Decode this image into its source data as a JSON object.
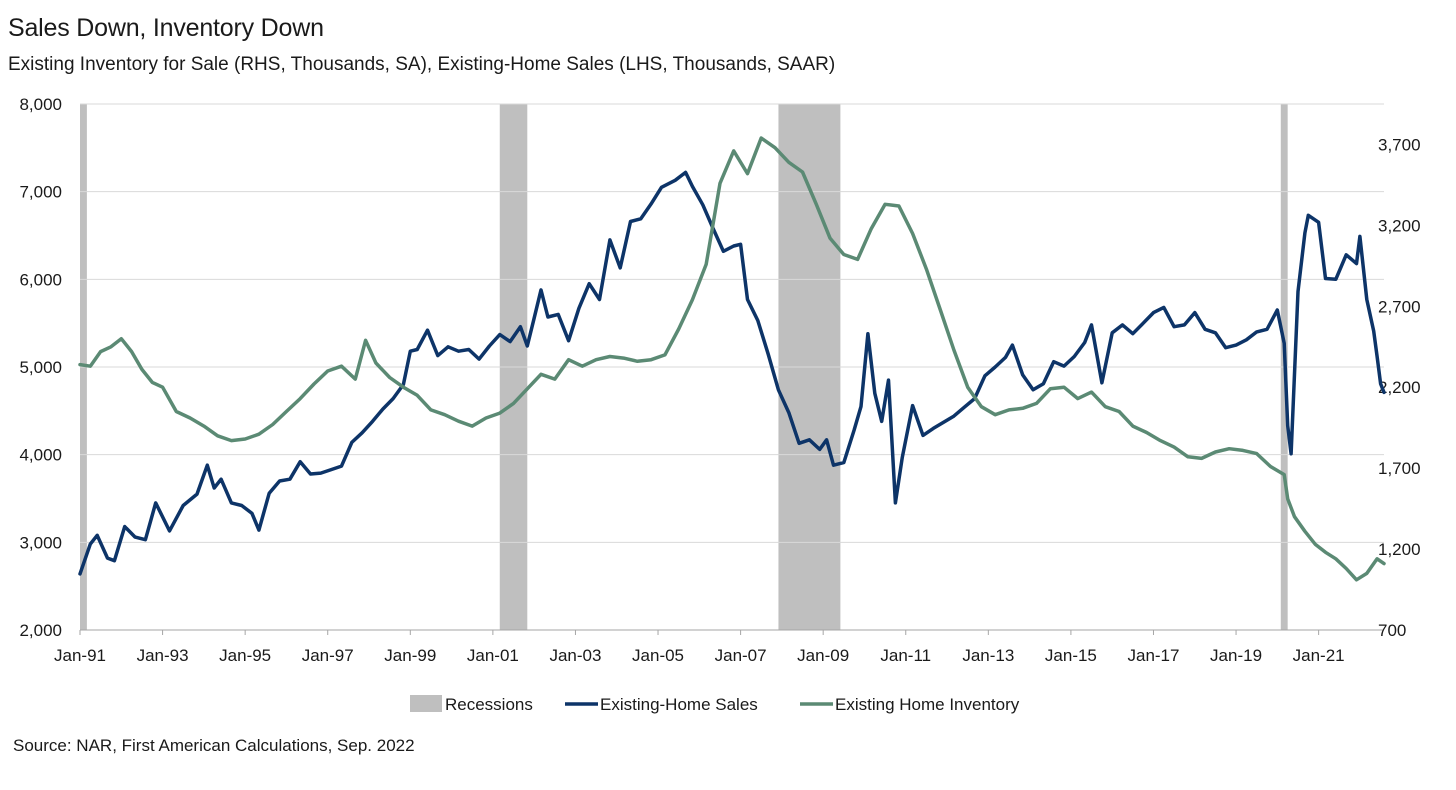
{
  "title": "Sales Down, Inventory Down",
  "subtitle": "Existing  Inventory for Sale (RHS, Thousands, SA), Existing-Home  Sales (LHS, Thousands, SAAR)",
  "source": "Source: NAR, First American Calculations, Sep.  2022",
  "colors": {
    "sales": "#0d3468",
    "inventory": "#5b8a74",
    "recession": "#bfbfbf",
    "grid": "#d9d9d9"
  },
  "chart_data": {
    "type": "line",
    "x_start": "1991-01",
    "x_end": "2022-08",
    "x_ticks": [
      "Jan-91",
      "Jan-93",
      "Jan-95",
      "Jan-97",
      "Jan-99",
      "Jan-01",
      "Jan-03",
      "Jan-05",
      "Jan-07",
      "Jan-09",
      "Jan-11",
      "Jan-13",
      "Jan-15",
      "Jan-17",
      "Jan-19",
      "Jan-21"
    ],
    "y_left": {
      "min": 2000,
      "max": 8000,
      "ticks": [
        "2,000",
        "3,000",
        "4,000",
        "5,000",
        "6,000",
        "7,000",
        "8,000"
      ],
      "tick_values": [
        2000,
        3000,
        4000,
        5000,
        6000,
        7000,
        8000
      ]
    },
    "y_right": {
      "min": 700,
      "max": 3950,
      "ticks": [
        "700",
        "1,200",
        "1,700",
        "2,200",
        "2,700",
        "3,200",
        "3,700"
      ],
      "tick_values": [
        700,
        1200,
        1700,
        2200,
        2700,
        3200,
        3700
      ]
    },
    "grid": true,
    "legend_position": "bottom",
    "legend": [
      "Recessions",
      "Existing-Home Sales",
      "Existing Home Inventory"
    ],
    "recessions": [
      [
        "1991-01",
        "1991-03"
      ],
      [
        "2001-03",
        "2001-11"
      ],
      [
        "2007-12",
        "2009-06"
      ],
      [
        "2020-02",
        "2020-04"
      ]
    ],
    "series": [
      {
        "name": "Existing-Home Sales",
        "axis": "left",
        "points": [
          [
            "1991-01",
            2640
          ],
          [
            "1991-04",
            2980
          ],
          [
            "1991-06",
            3080
          ],
          [
            "1991-09",
            2820
          ],
          [
            "1991-11",
            2790
          ],
          [
            "1992-02",
            3180
          ],
          [
            "1992-05",
            3060
          ],
          [
            "1992-08",
            3030
          ],
          [
            "1992-11",
            3450
          ],
          [
            "1993-03",
            3130
          ],
          [
            "1993-07",
            3420
          ],
          [
            "1993-11",
            3550
          ],
          [
            "1994-02",
            3880
          ],
          [
            "1994-04",
            3620
          ],
          [
            "1994-06",
            3720
          ],
          [
            "1994-09",
            3450
          ],
          [
            "1994-12",
            3420
          ],
          [
            "1995-03",
            3330
          ],
          [
            "1995-05",
            3140
          ],
          [
            "1995-08",
            3560
          ],
          [
            "1995-11",
            3700
          ],
          [
            "1996-02",
            3720
          ],
          [
            "1996-05",
            3920
          ],
          [
            "1996-08",
            3780
          ],
          [
            "1996-11",
            3790
          ],
          [
            "1997-02",
            3830
          ],
          [
            "1997-05",
            3870
          ],
          [
            "1997-08",
            4140
          ],
          [
            "1997-11",
            4250
          ],
          [
            "1998-02",
            4380
          ],
          [
            "1998-05",
            4520
          ],
          [
            "1998-08",
            4640
          ],
          [
            "1998-11",
            4800
          ],
          [
            "1999-01",
            5180
          ],
          [
            "1999-03",
            5200
          ],
          [
            "1999-06",
            5420
          ],
          [
            "1999-09",
            5130
          ],
          [
            "1999-12",
            5230
          ],
          [
            "2000-03",
            5180
          ],
          [
            "2000-06",
            5200
          ],
          [
            "2000-09",
            5090
          ],
          [
            "2000-12",
            5240
          ],
          [
            "2001-03",
            5370
          ],
          [
            "2001-06",
            5290
          ],
          [
            "2001-09",
            5460
          ],
          [
            "2001-11",
            5240
          ],
          [
            "2002-01",
            5560
          ],
          [
            "2002-03",
            5880
          ],
          [
            "2002-05",
            5570
          ],
          [
            "2002-08",
            5600
          ],
          [
            "2002-11",
            5300
          ],
          [
            "2003-02",
            5670
          ],
          [
            "2003-05",
            5950
          ],
          [
            "2003-08",
            5770
          ],
          [
            "2003-11",
            6450
          ],
          [
            "2004-02",
            6130
          ],
          [
            "2004-05",
            6660
          ],
          [
            "2004-08",
            6690
          ],
          [
            "2004-11",
            6860
          ],
          [
            "2005-02",
            7050
          ],
          [
            "2005-06",
            7130
          ],
          [
            "2005-09",
            7220
          ],
          [
            "2005-11",
            7060
          ],
          [
            "2006-02",
            6850
          ],
          [
            "2006-05",
            6580
          ],
          [
            "2006-08",
            6320
          ],
          [
            "2006-11",
            6380
          ],
          [
            "2007-01",
            6400
          ],
          [
            "2007-03",
            5770
          ],
          [
            "2007-06",
            5530
          ],
          [
            "2007-09",
            5150
          ],
          [
            "2007-12",
            4740
          ],
          [
            "2008-03",
            4480
          ],
          [
            "2008-06",
            4130
          ],
          [
            "2008-09",
            4170
          ],
          [
            "2008-12",
            4060
          ],
          [
            "2009-02",
            4170
          ],
          [
            "2009-04",
            3880
          ],
          [
            "2009-07",
            3910
          ],
          [
            "2009-10",
            4280
          ],
          [
            "2009-12",
            4550
          ],
          [
            "2010-02",
            5380
          ],
          [
            "2010-04",
            4700
          ],
          [
            "2010-06",
            4380
          ],
          [
            "2010-08",
            4850
          ],
          [
            "2010-10",
            3450
          ],
          [
            "2010-12",
            3970
          ],
          [
            "2011-03",
            4560
          ],
          [
            "2011-06",
            4220
          ],
          [
            "2011-09",
            4300
          ],
          [
            "2011-12",
            4370
          ],
          [
            "2012-03",
            4440
          ],
          [
            "2012-06",
            4540
          ],
          [
            "2012-09",
            4640
          ],
          [
            "2012-12",
            4900
          ],
          [
            "2013-03",
            5000
          ],
          [
            "2013-06",
            5110
          ],
          [
            "2013-08",
            5250
          ],
          [
            "2013-11",
            4910
          ],
          [
            "2014-02",
            4740
          ],
          [
            "2014-05",
            4810
          ],
          [
            "2014-08",
            5060
          ],
          [
            "2014-11",
            5010
          ],
          [
            "2015-02",
            5120
          ],
          [
            "2015-05",
            5280
          ],
          [
            "2015-07",
            5480
          ],
          [
            "2015-10",
            4820
          ],
          [
            "2016-01",
            5390
          ],
          [
            "2016-04",
            5480
          ],
          [
            "2016-07",
            5380
          ],
          [
            "2016-10",
            5500
          ],
          [
            "2017-01",
            5620
          ],
          [
            "2017-04",
            5680
          ],
          [
            "2017-07",
            5460
          ],
          [
            "2017-10",
            5480
          ],
          [
            "2018-01",
            5620
          ],
          [
            "2018-04",
            5430
          ],
          [
            "2018-07",
            5390
          ],
          [
            "2018-10",
            5220
          ],
          [
            "2019-01",
            5250
          ],
          [
            "2019-04",
            5310
          ],
          [
            "2019-07",
            5400
          ],
          [
            "2019-10",
            5430
          ],
          [
            "2020-01",
            5650
          ],
          [
            "2020-03",
            5270
          ],
          [
            "2020-04",
            4330
          ],
          [
            "2020-05",
            4010
          ],
          [
            "2020-07",
            5860
          ],
          [
            "2020-09",
            6530
          ],
          [
            "2020-10",
            6730
          ],
          [
            "2021-01",
            6650
          ],
          [
            "2021-03",
            6010
          ],
          [
            "2021-06",
            6000
          ],
          [
            "2021-09",
            6280
          ],
          [
            "2021-12",
            6180
          ],
          [
            "2022-01",
            6490
          ],
          [
            "2022-03",
            5770
          ],
          [
            "2022-05",
            5410
          ],
          [
            "2022-06",
            5120
          ],
          [
            "2022-07",
            4810
          ],
          [
            "2022-08",
            4710
          ]
        ]
      },
      {
        "name": "Existing Home Inventory",
        "axis": "right",
        "points": [
          [
            "1991-01",
            2340
          ],
          [
            "1991-04",
            2330
          ],
          [
            "1991-07",
            2420
          ],
          [
            "1991-10",
            2450
          ],
          [
            "1992-01",
            2500
          ],
          [
            "1992-04",
            2420
          ],
          [
            "1992-07",
            2310
          ],
          [
            "1992-10",
            2230
          ],
          [
            "1993-01",
            2200
          ],
          [
            "1993-05",
            2050
          ],
          [
            "1993-09",
            2010
          ],
          [
            "1994-01",
            1960
          ],
          [
            "1994-05",
            1900
          ],
          [
            "1994-09",
            1870
          ],
          [
            "1995-01",
            1880
          ],
          [
            "1995-05",
            1910
          ],
          [
            "1995-09",
            1970
          ],
          [
            "1996-01",
            2050
          ],
          [
            "1996-05",
            2130
          ],
          [
            "1996-09",
            2220
          ],
          [
            "1997-01",
            2300
          ],
          [
            "1997-05",
            2330
          ],
          [
            "1997-09",
            2250
          ],
          [
            "1997-12",
            2490
          ],
          [
            "1998-03",
            2350
          ],
          [
            "1998-07",
            2260
          ],
          [
            "1998-11",
            2200
          ],
          [
            "1999-03",
            2150
          ],
          [
            "1999-07",
            2060
          ],
          [
            "1999-11",
            2030
          ],
          [
            "2000-03",
            1990
          ],
          [
            "2000-07",
            1960
          ],
          [
            "2000-11",
            2010
          ],
          [
            "2001-03",
            2040
          ],
          [
            "2001-07",
            2100
          ],
          [
            "2001-11",
            2190
          ],
          [
            "2002-03",
            2280
          ],
          [
            "2002-07",
            2250
          ],
          [
            "2002-11",
            2370
          ],
          [
            "2003-03",
            2330
          ],
          [
            "2003-07",
            2370
          ],
          [
            "2003-11",
            2390
          ],
          [
            "2004-03",
            2380
          ],
          [
            "2004-07",
            2360
          ],
          [
            "2004-11",
            2370
          ],
          [
            "2005-03",
            2400
          ],
          [
            "2005-07",
            2560
          ],
          [
            "2005-11",
            2740
          ],
          [
            "2006-03",
            2960
          ],
          [
            "2006-07",
            3460
          ],
          [
            "2006-11",
            3660
          ],
          [
            "2007-03",
            3520
          ],
          [
            "2007-07",
            3740
          ],
          [
            "2007-11",
            3680
          ],
          [
            "2008-03",
            3590
          ],
          [
            "2008-07",
            3530
          ],
          [
            "2008-11",
            3330
          ],
          [
            "2009-03",
            3120
          ],
          [
            "2009-07",
            3020
          ],
          [
            "2009-11",
            2990
          ],
          [
            "2010-03",
            3180
          ],
          [
            "2010-07",
            3330
          ],
          [
            "2010-11",
            3320
          ],
          [
            "2011-03",
            3150
          ],
          [
            "2011-07",
            2930
          ],
          [
            "2011-11",
            2680
          ],
          [
            "2012-03",
            2430
          ],
          [
            "2012-07",
            2200
          ],
          [
            "2012-11",
            2080
          ],
          [
            "2013-03",
            2030
          ],
          [
            "2013-07",
            2060
          ],
          [
            "2013-11",
            2070
          ],
          [
            "2014-03",
            2100
          ],
          [
            "2014-07",
            2190
          ],
          [
            "2014-11",
            2200
          ],
          [
            "2015-03",
            2130
          ],
          [
            "2015-07",
            2170
          ],
          [
            "2015-11",
            2080
          ],
          [
            "2016-03",
            2050
          ],
          [
            "2016-07",
            1960
          ],
          [
            "2016-11",
            1920
          ],
          [
            "2017-03",
            1870
          ],
          [
            "2017-07",
            1830
          ],
          [
            "2017-11",
            1770
          ],
          [
            "2018-03",
            1760
          ],
          [
            "2018-07",
            1800
          ],
          [
            "2018-11",
            1820
          ],
          [
            "2019-03",
            1810
          ],
          [
            "2019-07",
            1790
          ],
          [
            "2019-11",
            1710
          ],
          [
            "2020-03",
            1660
          ],
          [
            "2020-04",
            1510
          ],
          [
            "2020-06",
            1400
          ],
          [
            "2020-09",
            1310
          ],
          [
            "2020-12",
            1230
          ],
          [
            "2021-03",
            1180
          ],
          [
            "2021-06",
            1140
          ],
          [
            "2021-09",
            1080
          ],
          [
            "2021-12",
            1010
          ],
          [
            "2022-03",
            1050
          ],
          [
            "2022-06",
            1140
          ],
          [
            "2022-08",
            1110
          ]
        ]
      }
    ]
  }
}
